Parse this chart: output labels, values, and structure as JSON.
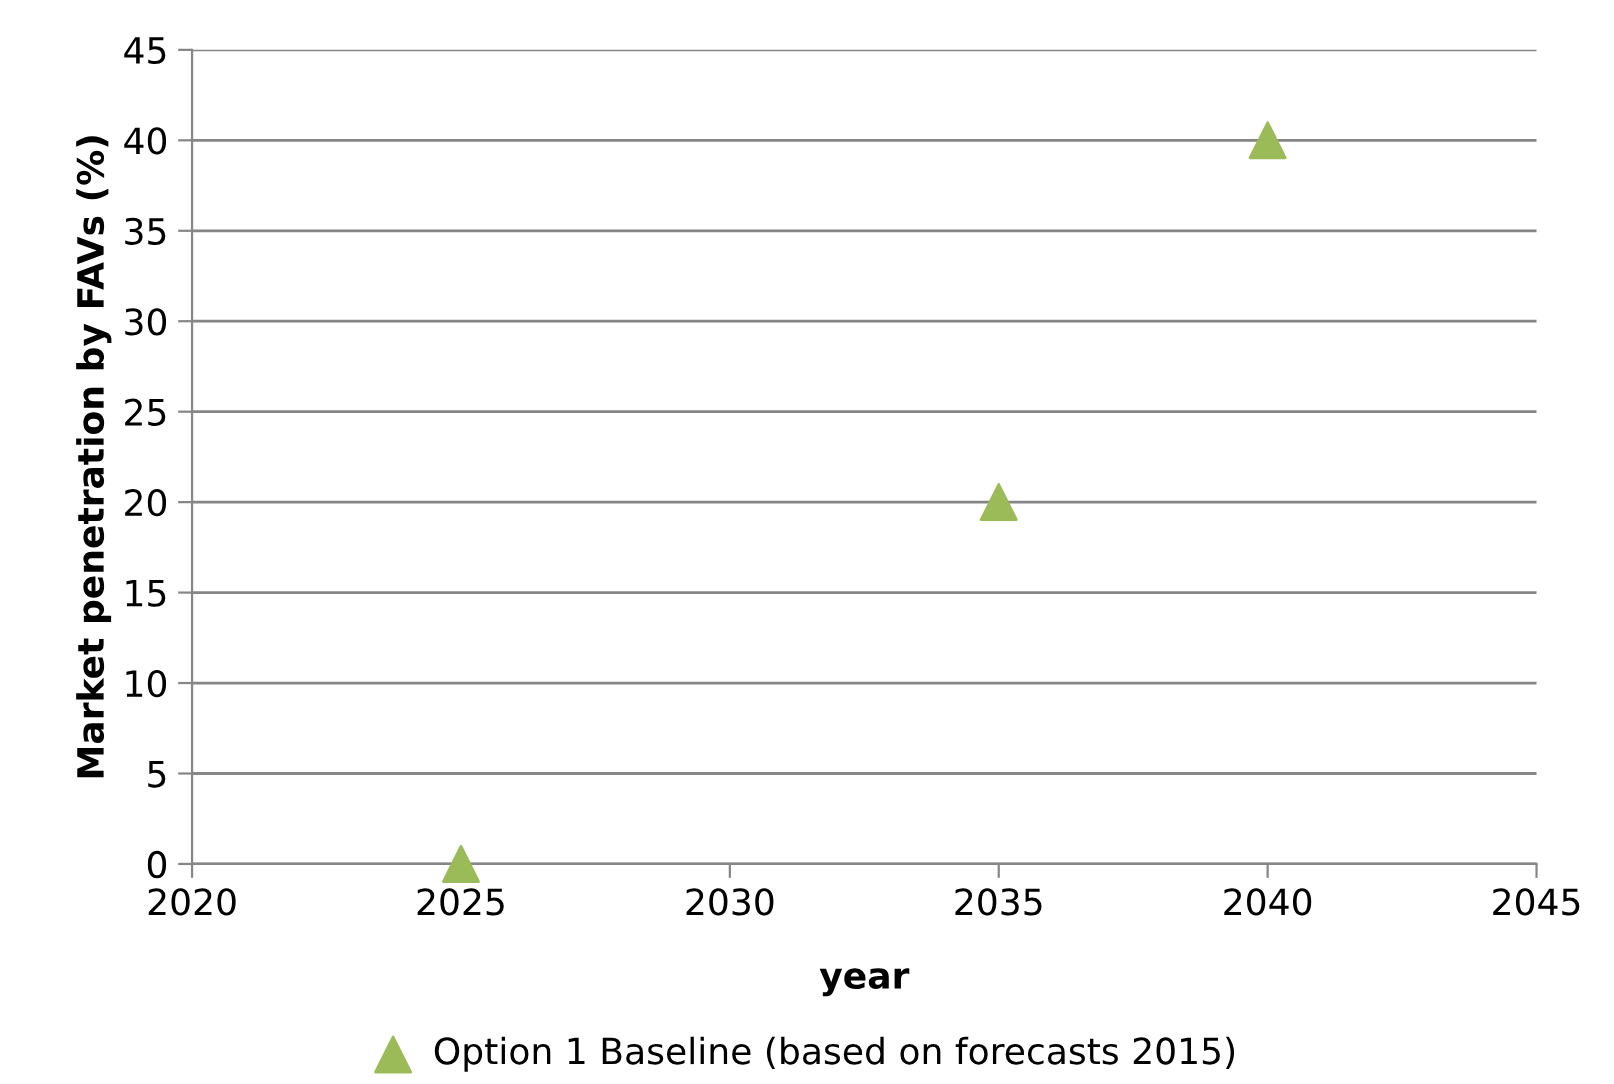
{
  "chart_data": {
    "type": "scatter",
    "xlabel": "year",
    "ylabel": "Market penetration by FAVs (%)",
    "x": [
      2025,
      2035,
      2040
    ],
    "series": [
      {
        "name": "Option 1 Baseline (based on forecasts 2015)",
        "color": "#9bbb59",
        "values": [
          0,
          20,
          40
        ]
      }
    ],
    "xlim": [
      2020,
      2045
    ],
    "xticks": [
      2020,
      2025,
      2030,
      2035,
      2040,
      2045
    ],
    "ylim": [
      0,
      45
    ],
    "yticks": [
      0,
      5,
      10,
      15,
      20,
      25,
      30,
      35,
      40,
      45
    ],
    "grid": "y",
    "legend": "bottom",
    "marker": "triangle"
  }
}
